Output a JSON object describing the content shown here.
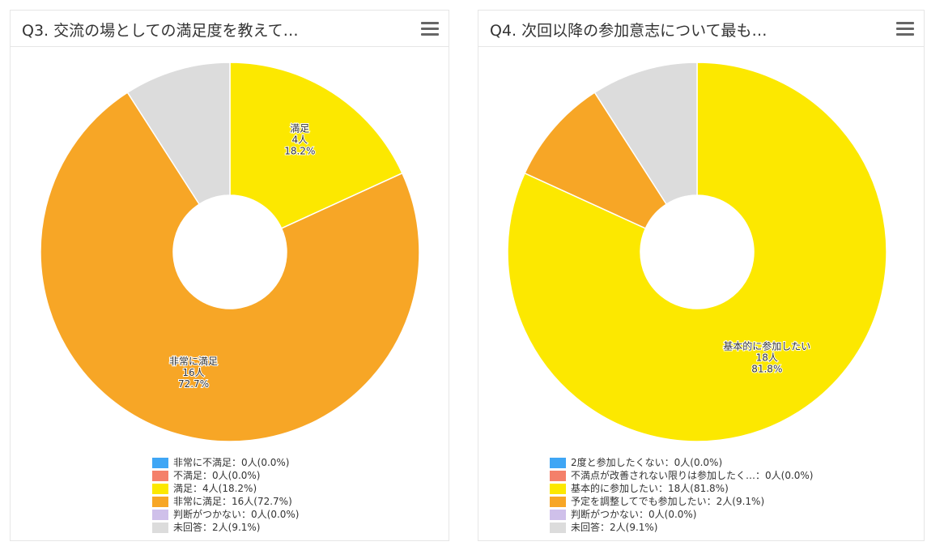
{
  "chart_data": [
    {
      "type": "pie",
      "donut": true,
      "title": "Q3. 交流の場としての満足度を教えて…",
      "categories": [
        "非常に不満足",
        "不満足",
        "満足",
        "非常に満足",
        "判断がつかない",
        "未回答"
      ],
      "values": [
        0,
        0,
        4,
        16,
        0,
        2
      ],
      "percents": [
        0.0,
        0.0,
        18.2,
        72.7,
        0.0,
        9.1
      ],
      "colors": [
        "#3fa6f5",
        "#f4806a",
        "#fce800",
        "#f7a626",
        "#cfc0ea",
        "#dcdcdc"
      ],
      "legend_labels": [
        "非常に不満足：0人(0.0%)",
        "不満足：0人(0.0%)",
        "満足：4人(18.2%)",
        "非常に満足：16人(72.7%)",
        "判断がつかない：0人(0.0%)",
        "未回答：2人(9.1%)"
      ],
      "data_labels": [
        {
          "category": "満足",
          "lines": [
            "満足",
            "4人",
            "18.2%"
          ]
        },
        {
          "category": "非常に満足",
          "lines": [
            "非常に満足",
            "16人",
            "72.7%"
          ]
        }
      ],
      "legend_position": "bottom"
    },
    {
      "type": "pie",
      "donut": true,
      "title": "Q4. 次回以降の参加意志について最も…",
      "categories": [
        "2度と参加したくない",
        "不満点が改善されない限りは参加したく…",
        "基本的に参加したい",
        "予定を調整してでも参加したい",
        "判断がつかない",
        "未回答"
      ],
      "values": [
        0,
        0,
        18,
        2,
        0,
        2
      ],
      "percents": [
        0.0,
        0.0,
        81.8,
        9.1,
        0.0,
        9.1
      ],
      "colors": [
        "#3fa6f5",
        "#f4806a",
        "#fce800",
        "#f7a626",
        "#cfc0ea",
        "#dcdcdc"
      ],
      "legend_labels": [
        "2度と参加したくない：0人(0.0%)",
        "不満点が改善されない限りは参加したく…：0人(0.0%)",
        "基本的に参加したい：18人(81.8%)",
        "予定を調整してでも参加したい：2人(9.1%)",
        "判断がつかない：0人(0.0%)",
        "未回答：2人(9.1%)"
      ],
      "data_labels": [
        {
          "category": "基本的に参加したい",
          "lines": [
            "基本的に参加したい",
            "18人",
            "81.8%"
          ]
        }
      ],
      "legend_position": "bottom"
    }
  ]
}
